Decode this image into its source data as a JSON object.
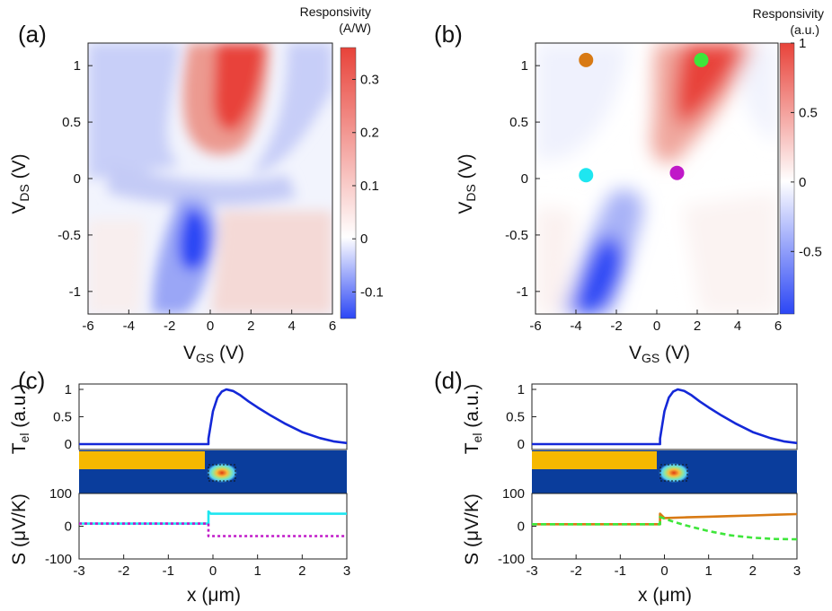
{
  "panels": {
    "a": {
      "label": "(a)",
      "xlabel_main": "V",
      "xlabel_sub": "GS",
      "xlabel_unit": " (V)",
      "ylabel_main": "V",
      "ylabel_sub": "DS",
      "ylabel_unit": " (V)",
      "cbar_title_1": "Responsivity",
      "cbar_title_2": "(A/W)",
      "x_ticks": [
        "-6",
        "-4",
        "-2",
        "0",
        "2",
        "4",
        "6"
      ],
      "y_ticks": [
        "1",
        "0.5",
        "0",
        "-0.5",
        "-1"
      ],
      "cbar_ticks": [
        "0.3",
        "0.2",
        "0.1",
        "0",
        "-0.1"
      ]
    },
    "b": {
      "label": "(b)",
      "xlabel_main": "V",
      "xlabel_sub": "GS",
      "xlabel_unit": " (V)",
      "ylabel_main": "V",
      "ylabel_sub": "DS",
      "ylabel_unit": " (V)",
      "cbar_title_1": "Responsivity",
      "cbar_title_2": "(a.u.)",
      "x_ticks": [
        "-6",
        "-4",
        "-2",
        "0",
        "2",
        "4",
        "6"
      ],
      "y_ticks": [
        "1",
        "0.5",
        "0",
        "-0.5",
        "-1"
      ],
      "cbar_ticks": [
        "1",
        "0.5",
        "0",
        "-0.5"
      ]
    },
    "c": {
      "label": "(c)",
      "t_ylabel_main": "T",
      "t_ylabel_sub": "el",
      "t_ylabel_unit": " (a.u.)",
      "s_ylabel": "S (μV/K)",
      "xlabel": "x (μm)",
      "t_ticks": [
        "1",
        "0.5",
        "0"
      ],
      "s_ticks": [
        "100",
        "0",
        "-100"
      ],
      "x_ticks": [
        "-3",
        "-2",
        "-1",
        "0",
        "1",
        "2",
        "3"
      ]
    },
    "d": {
      "label": "(d)",
      "t_ylabel_main": "T",
      "t_ylabel_sub": "el",
      "t_ylabel_unit": " (a.u.)",
      "s_ylabel": "S (μV/K)",
      "xlabel": "x (μm)",
      "t_ticks": [
        "1",
        "0.5",
        "0"
      ],
      "s_ticks": [
        "100",
        "0",
        "-100"
      ],
      "x_ticks": [
        "-3",
        "-2",
        "-1",
        "0",
        "1",
        "2",
        "3"
      ]
    }
  },
  "colors": {
    "red": "#e8433a",
    "blue": "#2b46f5",
    "white": "#ffffff",
    "temperature": "#1428d8",
    "cyan": "#1ee6f0",
    "magenta": "#c018c8",
    "green": "#3ee63a",
    "orange": "#d87a14",
    "gate_metal": "#f5b800",
    "substrate": "#0a3d9c"
  },
  "chart_data": [
    {
      "panel": "a",
      "type": "heatmap",
      "xlabel": "VGS (V)",
      "ylabel": "VDS (V)",
      "colorbar_label": "Responsivity (A/W)",
      "xlim": [
        -6,
        6
      ],
      "ylim": [
        -1.2,
        1.2
      ],
      "clim": [
        -0.15,
        0.36
      ],
      "features": [
        {
          "region": "red lobe",
          "center": [
            1.5,
            0.95
          ],
          "value": 0.33
        },
        {
          "region": "blue lobe",
          "center": [
            0,
            -0.5
          ],
          "value": -0.15
        },
        {
          "region": "pale red",
          "center": [
            3.5,
            -0.6
          ],
          "value": 0.05
        },
        {
          "region": "pale blue",
          "center": [
            -3.5,
            0.7
          ],
          "value": -0.05
        }
      ]
    },
    {
      "panel": "b",
      "type": "heatmap",
      "xlabel": "VGS (V)",
      "ylabel": "VDS (V)",
      "colorbar_label": "Responsivity (a.u.)",
      "xlim": [
        -6,
        6
      ],
      "ylim": [
        -1.2,
        1.2
      ],
      "clim": [
        -0.95,
        1
      ],
      "features": [
        {
          "region": "red lobe",
          "center": [
            2,
            1
          ],
          "value": 1
        },
        {
          "region": "blue lobe",
          "center": [
            -1.8,
            -1
          ],
          "value": -0.95
        }
      ],
      "markers": [
        {
          "color": "orange",
          "x": -3.5,
          "y": 1.05
        },
        {
          "color": "green",
          "x": 2.2,
          "y": 1.05
        },
        {
          "color": "cyan",
          "x": -3.5,
          "y": 0.03
        },
        {
          "color": "magenta",
          "x": 1.0,
          "y": 0.05
        }
      ]
    },
    {
      "panel": "c",
      "type": "line",
      "xlabel": "x (μm)",
      "xlim": [
        -3,
        3
      ],
      "series": [
        {
          "axis": "Tel",
          "color": "temperature",
          "style": "solid",
          "x": [
            -3,
            -0.1,
            -0.1,
            0,
            0.1,
            0.2,
            0.3,
            0.45,
            0.6,
            0.8,
            1.0,
            1.3,
            1.6,
            2.0,
            2.4,
            2.7,
            3.0
          ],
          "y": [
            0,
            0,
            0.1,
            0.6,
            0.85,
            0.96,
            1.0,
            0.97,
            0.9,
            0.78,
            0.67,
            0.52,
            0.38,
            0.22,
            0.11,
            0.05,
            0.02
          ]
        },
        {
          "axis": "S",
          "color": "cyan",
          "style": "solid",
          "x": [
            -3,
            -0.1,
            -0.1,
            -0.05,
            3
          ],
          "y": [
            8,
            8,
            45,
            38,
            38
          ]
        },
        {
          "axis": "S",
          "color": "magenta",
          "style": "dotted",
          "x": [
            -3,
            -0.1,
            -0.1,
            3
          ],
          "y": [
            8,
            8,
            -30,
            -30
          ]
        }
      ],
      "s_ylim": [
        -100,
        100
      ],
      "t_ylim": [
        0,
        1
      ]
    },
    {
      "panel": "d",
      "type": "line",
      "xlabel": "x (μm)",
      "xlim": [
        -3,
        3
      ],
      "series": [
        {
          "axis": "Tel",
          "color": "temperature",
          "style": "solid",
          "x": [
            -3,
            -0.1,
            -0.1,
            0,
            0.1,
            0.2,
            0.3,
            0.45,
            0.6,
            0.8,
            1.0,
            1.3,
            1.6,
            2.0,
            2.4,
            2.7,
            3.0
          ],
          "y": [
            0,
            0,
            0.1,
            0.6,
            0.85,
            0.96,
            1.0,
            0.97,
            0.9,
            0.78,
            0.67,
            0.52,
            0.38,
            0.22,
            0.11,
            0.05,
            0.02
          ]
        },
        {
          "axis": "S",
          "color": "orange",
          "style": "solid",
          "x": [
            -3,
            -0.1,
            -0.1,
            0,
            0.5,
            1.0,
            1.5,
            2.0,
            2.5,
            3.0
          ],
          "y": [
            6,
            6,
            38,
            25,
            27,
            29,
            31,
            33,
            35,
            37
          ]
        },
        {
          "axis": "S",
          "color": "green",
          "style": "dashed",
          "x": [
            -3,
            -0.1,
            -0.1,
            0.2,
            0.5,
            1.0,
            1.5,
            2.0,
            2.5,
            3.0
          ],
          "y": [
            6,
            6,
            28,
            14,
            2,
            -15,
            -28,
            -35,
            -39,
            -40
          ]
        }
      ],
      "s_ylim": [
        -100,
        100
      ],
      "t_ylim": [
        0,
        1
      ]
    }
  ]
}
